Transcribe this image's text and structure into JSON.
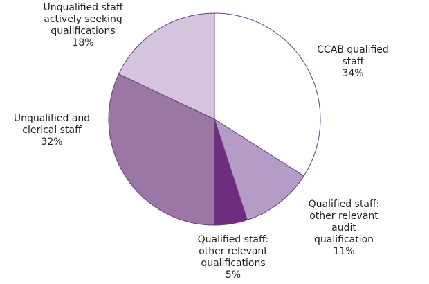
{
  "chart_data": {
    "type": "pie",
    "categories": [
      "CCAB qualified staff",
      "Qualified staff:\nother relevant\naudit qualification",
      "Qualified staff:\nother relevant\nqualifications",
      "Unqualified and\nclerical staff",
      "Unqualified staff\nactively seeking\nqualifications"
    ],
    "values": [
      34,
      11,
      5,
      32,
      18
    ],
    "value_labels": [
      "34%",
      "11%",
      "5%",
      "32%",
      "18%"
    ],
    "colors": [
      "#ffffff",
      "#b59cc7",
      "#6e2d7f",
      "#9b77a6",
      "#d5c4dd"
    ]
  }
}
